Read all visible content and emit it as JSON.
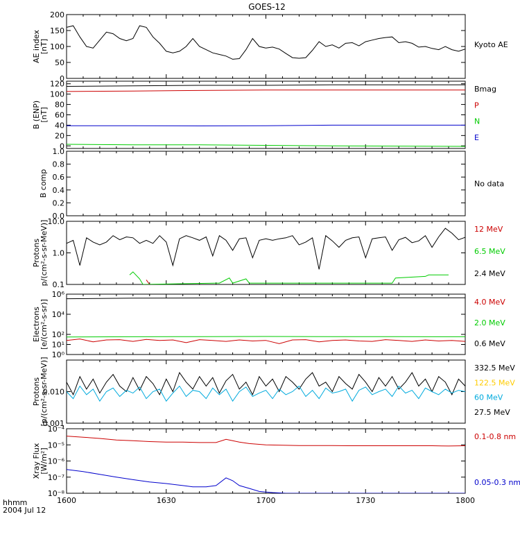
{
  "title": "GOES-12",
  "time_label": "hhmm",
  "date_label": "2004 Jul 12",
  "x_ticks": [
    "1600",
    "1630",
    "1700",
    "1730",
    "1800"
  ],
  "colors": {
    "black": "#000000",
    "red": "#cc0000",
    "green": "#00cc00",
    "blue": "#0000cc",
    "yellow": "#ffcc00",
    "cyan": "#00aadd"
  },
  "chart_data": [
    {
      "type": "line",
      "title": "GOES-12",
      "ylabel": [
        "AE index",
        "[nT]"
      ],
      "yscale": "linear",
      "ylim": [
        0,
        200
      ],
      "yticks": [
        0,
        50,
        100,
        150,
        200
      ],
      "ytick_labels": [
        "0",
        "50",
        "100",
        "150",
        "200"
      ],
      "xlim": [
        0,
        120
      ],
      "series": [
        {
          "name": "Kyoto AE",
          "color": "#000000",
          "x": [
            0,
            2,
            4,
            6,
            8,
            10,
            12,
            14,
            16,
            18,
            20,
            22,
            24,
            26,
            28,
            30,
            32,
            34,
            36,
            38,
            40,
            42,
            44,
            46,
            48,
            50,
            52,
            54,
            56,
            58,
            60,
            62,
            64,
            66,
            68,
            70,
            72,
            74,
            76,
            78,
            80,
            82,
            84,
            86,
            88,
            90,
            92,
            94,
            96,
            98,
            100,
            102,
            104,
            106,
            108,
            110,
            112,
            114,
            116,
            118,
            120
          ],
          "y": [
            160,
            165,
            130,
            100,
            95,
            120,
            145,
            140,
            125,
            118,
            125,
            165,
            160,
            130,
            110,
            85,
            80,
            85,
            100,
            125,
            100,
            90,
            80,
            75,
            70,
            60,
            62,
            90,
            125,
            100,
            95,
            98,
            92,
            78,
            65,
            63,
            65,
            88,
            115,
            100,
            105,
            95,
            110,
            112,
            102,
            115,
            120,
            125,
            128,
            130,
            112,
            115,
            110,
            98,
            100,
            94,
            90,
            100,
            90,
            85,
            92
          ]
        }
      ]
    },
    {
      "type": "line",
      "ylabel": [
        "B (ENP)",
        "[nT]"
      ],
      "yscale": "linear",
      "ylim": [
        -5,
        125
      ],
      "yticks": [
        0,
        20,
        40,
        60,
        80,
        100,
        120
      ],
      "ytick_labels": [
        "0",
        "20",
        "40",
        "60",
        "80",
        "100",
        "120"
      ],
      "xlim": [
        0,
        120
      ],
      "series": [
        {
          "name": "Bmag",
          "color": "#000000",
          "x": [
            0,
            20,
            40,
            60,
            80,
            100,
            120
          ],
          "y": [
            115,
            116,
            117,
            117,
            118,
            118,
            118
          ]
        },
        {
          "name": "P",
          "color": "#cc0000",
          "x": [
            0,
            20,
            40,
            60,
            80,
            100,
            120
          ],
          "y": [
            105,
            106,
            107,
            108,
            108,
            108,
            108
          ]
        },
        {
          "name": "N",
          "color": "#00cc00",
          "x": [
            0,
            20,
            40,
            60,
            80,
            100,
            120
          ],
          "y": [
            3,
            2,
            2,
            1,
            0,
            -0.5,
            -1
          ]
        },
        {
          "name": "E",
          "color": "#0000cc",
          "x": [
            0,
            20,
            40,
            60,
            80,
            100,
            120
          ],
          "y": [
            39,
            39,
            38.5,
            39,
            40,
            40,
            40
          ]
        }
      ]
    },
    {
      "type": "line",
      "ylabel": [
        "B comp"
      ],
      "yscale": "linear",
      "ylim": [
        0,
        1
      ],
      "yticks": [
        0,
        0.2,
        0.4,
        0.6,
        0.8,
        1.0
      ],
      "ytick_labels": [
        "0.0",
        "0.2",
        "0.4",
        "0.6",
        "0.8",
        "1.0"
      ],
      "xlim": [
        0,
        120
      ],
      "status": "No data",
      "series": []
    },
    {
      "type": "line",
      "ylabel": [
        "Protons",
        "p/(cm²-s-sr-MeV)]"
      ],
      "yscale": "log",
      "ylim": [
        0.1,
        10
      ],
      "yticks": [
        0.1,
        1,
        10
      ],
      "ytick_labels": [
        "0.1",
        "1.0",
        "10.0"
      ],
      "xlim": [
        0,
        120
      ],
      "series": [
        {
          "name": "12 MeV",
          "color": "#cc0000",
          "x": [
            24,
            25
          ],
          "y": [
            0.14,
            0.1
          ]
        },
        {
          "name": "6.5 MeV",
          "color": "#00cc00",
          "x": [
            19,
            20,
            22,
            23,
            45,
            46,
            49,
            50,
            54,
            55,
            64,
            65,
            75,
            76,
            98,
            99,
            108,
            109,
            114,
            115
          ],
          "y": [
            0.2,
            0.25,
            0.15,
            0.1,
            0.11,
            0.11,
            0.16,
            0.11,
            0.15,
            0.11,
            0.11,
            0.11,
            0.11,
            0.11,
            0.11,
            0.16,
            0.18,
            0.2,
            0.2,
            0.2
          ]
        },
        {
          "name": "2.4 MeV",
          "color": "#000000",
          "x": [
            0,
            2,
            4,
            6,
            8,
            10,
            12,
            14,
            16,
            18,
            20,
            22,
            24,
            26,
            28,
            30,
            32,
            34,
            36,
            38,
            40,
            42,
            44,
            46,
            48,
            50,
            52,
            54,
            56,
            58,
            60,
            62,
            64,
            66,
            68,
            70,
            72,
            74,
            76,
            78,
            80,
            82,
            84,
            86,
            88,
            90,
            92,
            94,
            96,
            98,
            100,
            102,
            104,
            106,
            108,
            110,
            112,
            114,
            116,
            118,
            120
          ],
          "y": [
            2,
            2.5,
            0.4,
            3,
            2.2,
            1.8,
            2.2,
            3.5,
            2.6,
            3.2,
            3,
            2,
            2.5,
            2,
            3.5,
            2.2,
            0.4,
            2.8,
            3.5,
            3,
            2.5,
            3.2,
            0.8,
            3.5,
            2.5,
            1.2,
            2.8,
            3,
            0.7,
            2.5,
            2.8,
            2.5,
            2.8,
            3,
            3.5,
            1.8,
            2.2,
            3,
            0.3,
            3.5,
            2.4,
            1.5,
            2.5,
            3,
            3.2,
            0.7,
            2.8,
            3,
            3.2,
            1.2,
            2.6,
            3.1,
            2.1,
            2.4,
            3.5,
            1.5,
            3.2,
            6,
            4.2,
            2.6,
            3.1
          ]
        }
      ]
    },
    {
      "type": "line",
      "ylabel": [
        "Electrons",
        "[e/(cm²-s-sr)]"
      ],
      "yscale": "log",
      "ylim": [
        1,
        1000000
      ],
      "yticks": [
        1,
        10,
        100,
        10000,
        1000000
      ],
      "ytick_labels": [
        "10⁰",
        "10¹",
        "10²",
        "10⁴",
        "10⁶"
      ],
      "xlim": [
        0,
        120
      ],
      "series": [
        {
          "name": "4.0 MeV",
          "color": "#cc0000",
          "x": [
            0,
            4,
            8,
            12,
            16,
            20,
            24,
            28,
            32,
            36,
            40,
            44,
            48,
            52,
            56,
            60,
            64,
            68,
            72,
            76,
            80,
            84,
            88,
            92,
            96,
            100,
            104,
            108,
            112,
            116,
            120
          ],
          "y": [
            25,
            35,
            18,
            28,
            30,
            20,
            32,
            25,
            28,
            15,
            30,
            25,
            20,
            28,
            22,
            25,
            12,
            28,
            30,
            18,
            25,
            28,
            22,
            20,
            30,
            25,
            20,
            28,
            22,
            25,
            20
          ]
        },
        {
          "name": "2.0 MeV",
          "color": "#00cc00",
          "x": [
            0,
            20,
            40,
            60,
            80,
            100,
            120
          ],
          "y": [
            55,
            58,
            60,
            62,
            60,
            60,
            58
          ]
        },
        {
          "name": "0.6 MeV",
          "color": "#000000",
          "x": [
            0,
            20,
            40,
            60,
            80,
            100,
            120
          ],
          "y": [
            350000,
            400000,
            420000,
            430000,
            440000,
            440000,
            440000
          ]
        }
      ]
    },
    {
      "type": "line",
      "ylabel": [
        "Protons",
        "[p/(cm²-s-sr-MeV)]"
      ],
      "yscale": "log",
      "ylim": [
        0.001,
        0.1
      ],
      "yticks": [
        0.001,
        0.01
      ],
      "ytick_labels": [
        "0.001",
        "0.010"
      ],
      "xlim": [
        0,
        120
      ],
      "series": [
        {
          "name": "332.5 MeV",
          "color": "#000000",
          "x": [
            0,
            2,
            4,
            6,
            8,
            10,
            12,
            14,
            16,
            18,
            20,
            22,
            24,
            26,
            28,
            30,
            32,
            34,
            36,
            38,
            40,
            42,
            44,
            46,
            48,
            50,
            52,
            54,
            56,
            58,
            60,
            62,
            64,
            66,
            68,
            70,
            72,
            74,
            76,
            78,
            80,
            82,
            84,
            86,
            88,
            90,
            92,
            94,
            96,
            98,
            100,
            102,
            104,
            106,
            108,
            110,
            112,
            114,
            116,
            118,
            120
          ],
          "y": [
            0.02,
            0.008,
            0.03,
            0.012,
            0.025,
            0.009,
            0.02,
            0.035,
            0.015,
            0.01,
            0.028,
            0.011,
            0.03,
            0.018,
            0.008,
            0.025,
            0.01,
            0.04,
            0.02,
            0.012,
            0.03,
            0.015,
            0.028,
            0.009,
            0.022,
            0.035,
            0.012,
            0.02,
            0.008,
            0.03,
            0.015,
            0.025,
            0.01,
            0.03,
            0.02,
            0.012,
            0.025,
            0.04,
            0.015,
            0.02,
            0.01,
            0.03,
            0.018,
            0.012,
            0.035,
            0.02,
            0.01,
            0.028,
            0.015,
            0.03,
            0.012,
            0.02,
            0.04,
            0.015,
            0.025,
            0.01,
            0.03,
            0.02,
            0.008,
            0.025,
            0.015
          ]
        },
        {
          "name": "122.5 MeV",
          "color": "#ffcc00",
          "x": [],
          "y": []
        },
        {
          "name": "60 MeV",
          "color": "#00aadd",
          "x": [
            0,
            2,
            4,
            6,
            8,
            10,
            12,
            14,
            16,
            18,
            20,
            22,
            24,
            26,
            28,
            30,
            32,
            34,
            36,
            38,
            40,
            42,
            44,
            46,
            48,
            50,
            52,
            54,
            56,
            58,
            60,
            62,
            64,
            66,
            68,
            70,
            72,
            74,
            76,
            78,
            80,
            82,
            84,
            86,
            88,
            90,
            92,
            94,
            96,
            98,
            100,
            102,
            104,
            106,
            108,
            110,
            112,
            114,
            116,
            118,
            120
          ],
          "y": [
            0.01,
            0.006,
            0.015,
            0.008,
            0.012,
            0.005,
            0.01,
            0.013,
            0.007,
            0.011,
            0.009,
            0.014,
            0.006,
            0.01,
            0.012,
            0.005,
            0.009,
            0.015,
            0.007,
            0.011,
            0.01,
            0.006,
            0.013,
            0.008,
            0.012,
            0.005,
            0.01,
            0.014,
            0.007,
            0.009,
            0.011,
            0.006,
            0.012,
            0.008,
            0.01,
            0.015,
            0.007,
            0.011,
            0.006,
            0.013,
            0.009,
            0.01,
            0.012,
            0.005,
            0.011,
            0.014,
            0.008,
            0.01,
            0.012,
            0.007,
            0.015,
            0.009,
            0.011,
            0.006,
            0.013,
            0.01,
            0.008,
            0.012,
            0.009,
            0.011,
            0.01
          ]
        },
        {
          "name": "27.5 MeV",
          "color": "#000000",
          "x": [],
          "y": []
        }
      ]
    },
    {
      "type": "line",
      "ylabel": [
        "Xray Flux",
        "[W/m²]"
      ],
      "yscale": "log",
      "ylim": [
        1e-08,
        0.0001
      ],
      "yticks": [
        1e-08,
        1e-07,
        1e-06,
        1e-05,
        0.0001
      ],
      "ytick_labels": [
        "10⁻⁸",
        "10⁻⁷",
        "10⁻⁶",
        "10⁻⁵",
        "10⁻⁴"
      ],
      "xlim": [
        0,
        120
      ],
      "series": [
        {
          "name": "0.1-0.8 nm",
          "color": "#cc0000",
          "x": [
            0,
            5,
            10,
            15,
            20,
            25,
            30,
            35,
            40,
            45,
            48,
            50,
            52,
            55,
            60,
            65,
            70,
            75,
            80,
            85,
            90,
            95,
            100,
            105,
            110,
            115,
            120
          ],
          "y": [
            3.5e-05,
            3e-05,
            2.5e-05,
            2e-05,
            1.8e-05,
            1.6e-05,
            1.5e-05,
            1.5e-05,
            1.4e-05,
            1.4e-05,
            2.2e-05,
            1.8e-05,
            1.5e-05,
            1.2e-05,
            1e-05,
            9.5e-06,
            9e-06,
            9e-06,
            9e-06,
            8.8e-06,
            8.8e-06,
            8.8e-06,
            8.8e-06,
            8.8e-06,
            8.8e-06,
            8.5e-06,
            8.8e-06
          ]
        },
        {
          "name": "0.05-0.3 nm",
          "color": "#0000cc",
          "x": [
            0,
            5,
            10,
            15,
            20,
            25,
            30,
            35,
            38,
            42,
            45,
            48,
            50,
            52,
            55,
            58,
            62,
            66,
            70,
            75,
            80,
            85,
            90,
            95,
            100,
            105,
            110,
            115,
            120
          ],
          "y": [
            3e-07,
            2.2e-07,
            1.5e-07,
            1e-07,
            7e-08,
            5e-08,
            4e-08,
            3e-08,
            2.5e-08,
            2.5e-08,
            3e-08,
            9e-08,
            6e-08,
            3e-08,
            2e-08,
            1.3e-08,
            1.1e-08,
            1e-08,
            1e-08,
            1e-08,
            1e-08,
            1e-08,
            1e-08,
            1e-08,
            1e-08,
            1e-08,
            1e-08,
            1e-08,
            1e-08
          ]
        }
      ]
    }
  ]
}
